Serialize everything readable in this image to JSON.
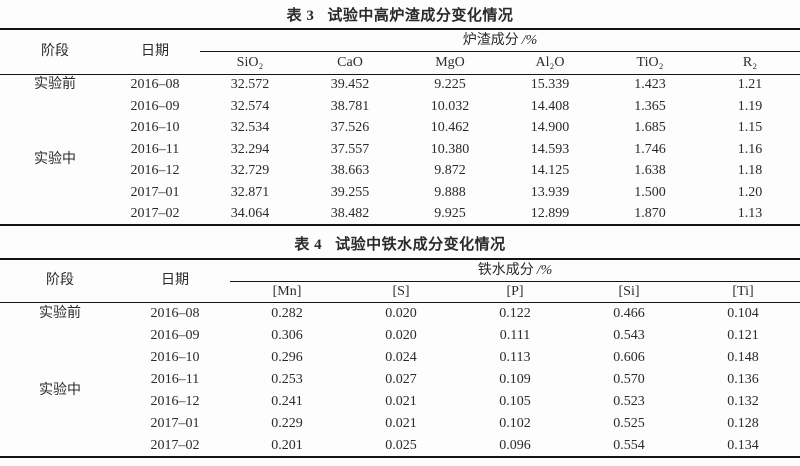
{
  "colors": {
    "page_bg": "#fdfdfd",
    "text": "#2a2a2a",
    "rule": "#141414"
  },
  "table3": {
    "title_label": "表 3",
    "title_text": "试验中高炉渣成分变化情况",
    "header": {
      "stage": "阶段",
      "date": "日期",
      "group": "炉渣成分",
      "group_unit": "/%"
    },
    "columns": [
      "SiO₂",
      "CaO",
      "MgO",
      "Al₂O",
      "TiO₂",
      "R₂"
    ],
    "stages": [
      {
        "label": "实验前",
        "start": 0,
        "rowspan": 1
      },
      {
        "label": "实验中",
        "start": 1,
        "rowspan": 6
      }
    ],
    "rows": [
      {
        "date": "2016–08",
        "values": [
          "32.572",
          "39.452",
          "9.225",
          "15.339",
          "1.423",
          "1.21"
        ]
      },
      {
        "date": "2016–09",
        "values": [
          "32.574",
          "38.781",
          "10.032",
          "14.408",
          "1.365",
          "1.19"
        ]
      },
      {
        "date": "2016–10",
        "values": [
          "32.534",
          "37.526",
          "10.462",
          "14.900",
          "1.685",
          "1.15"
        ]
      },
      {
        "date": "2016–11",
        "values": [
          "32.294",
          "37.557",
          "10.380",
          "14.593",
          "1.746",
          "1.16"
        ]
      },
      {
        "date": "2016–12",
        "values": [
          "32.729",
          "38.663",
          "9.872",
          "14.125",
          "1.638",
          "1.18"
        ]
      },
      {
        "date": "2017–01",
        "values": [
          "32.871",
          "39.255",
          "9.888",
          "13.939",
          "1.500",
          "1.20"
        ]
      },
      {
        "date": "2017–02",
        "values": [
          "34.064",
          "38.482",
          "9.925",
          "12.899",
          "1.870",
          "1.13"
        ]
      }
    ]
  },
  "table4": {
    "title_label": "表 4",
    "title_text": "试验中铁水成分变化情况",
    "header": {
      "stage": "阶段",
      "date": "日期",
      "group": "铁水成分",
      "group_unit": "/%"
    },
    "columns": [
      "[Mn]",
      "[S]",
      "[P]",
      "[Si]",
      "[Ti]"
    ],
    "stages": [
      {
        "label": "实验前",
        "start": 0,
        "rowspan": 1
      },
      {
        "label": "实验中",
        "start": 1,
        "rowspan": 6
      }
    ],
    "rows": [
      {
        "date": "2016–08",
        "values": [
          "0.282",
          "0.020",
          "0.122",
          "0.466",
          "0.104"
        ]
      },
      {
        "date": "2016–09",
        "values": [
          "0.306",
          "0.020",
          "0.111",
          "0.543",
          "0.121"
        ]
      },
      {
        "date": "2016–10",
        "values": [
          "0.296",
          "0.024",
          "0.113",
          "0.606",
          "0.148"
        ]
      },
      {
        "date": "2016–11",
        "values": [
          "0.253",
          "0.027",
          "0.109",
          "0.570",
          "0.136"
        ]
      },
      {
        "date": "2016–12",
        "values": [
          "0.241",
          "0.021",
          "0.105",
          "0.523",
          "0.132"
        ]
      },
      {
        "date": "2017–01",
        "values": [
          "0.229",
          "0.021",
          "0.102",
          "0.525",
          "0.128"
        ]
      },
      {
        "date": "2017–02",
        "values": [
          "0.201",
          "0.025",
          "0.096",
          "0.554",
          "0.134"
        ]
      }
    ]
  }
}
